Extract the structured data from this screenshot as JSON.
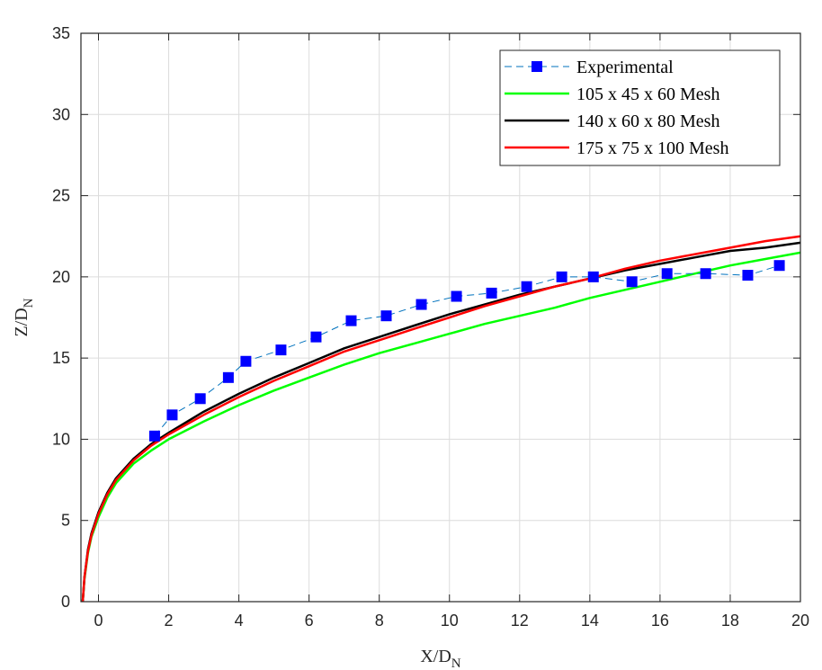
{
  "chart_data": {
    "type": "line",
    "xlabel": "X/D",
    "xlabel_sub": "N",
    "ylabel": "Z/D",
    "ylabel_sub": "N",
    "xlim": [
      -0.5,
      20
    ],
    "ylim": [
      0,
      35
    ],
    "xticks": [
      0,
      2,
      4,
      6,
      8,
      10,
      12,
      14,
      16,
      18,
      20
    ],
    "yticks": [
      0,
      5,
      10,
      15,
      20,
      25,
      30,
      35
    ],
    "grid": true,
    "legend_position": "top-right",
    "series": [
      {
        "name": "Experimental",
        "color": "#0000ff",
        "line_color": "#0072bd",
        "line_style": "dashed",
        "marker": "square",
        "x": [
          1.6,
          2.1,
          2.9,
          3.7,
          4.2,
          5.2,
          6.2,
          7.2,
          8.2,
          9.2,
          10.2,
          11.2,
          12.2,
          13.2,
          14.1,
          15.2,
          16.2,
          17.3,
          18.5,
          19.4
        ],
        "y": [
          10.2,
          11.5,
          12.5,
          13.8,
          14.8,
          15.5,
          16.3,
          17.3,
          17.6,
          18.3,
          18.8,
          19.0,
          19.4,
          20.0,
          20.0,
          19.7,
          20.2,
          20.2,
          20.1,
          20.7
        ]
      },
      {
        "name": "105 x 45 x 60 Mesh",
        "color": "#00ff00",
        "x": [
          -0.45,
          -0.4,
          -0.3,
          -0.2,
          0,
          0.25,
          0.5,
          1,
          1.5,
          2,
          3,
          4,
          5,
          6,
          7,
          8,
          9,
          10,
          11,
          12,
          13,
          14,
          15,
          16,
          17,
          18,
          19,
          20
        ],
        "y": [
          0,
          1.4,
          3.0,
          4.0,
          5.2,
          6.4,
          7.3,
          8.5,
          9.3,
          10.0,
          11.1,
          12.1,
          13.0,
          13.8,
          14.6,
          15.3,
          15.9,
          16.5,
          17.1,
          17.6,
          18.1,
          18.7,
          19.2,
          19.7,
          20.2,
          20.7,
          21.1,
          21.5
        ]
      },
      {
        "name": "140 x 60 x 80 Mesh",
        "color": "#000000",
        "x": [
          -0.45,
          -0.4,
          -0.3,
          -0.2,
          0,
          0.25,
          0.5,
          1,
          1.5,
          2,
          3,
          4,
          5,
          6,
          7,
          8,
          9,
          10,
          11,
          12,
          13,
          14,
          15,
          16,
          17,
          18,
          19,
          20
        ],
        "y": [
          0,
          1.5,
          3.2,
          4.2,
          5.5,
          6.7,
          7.6,
          8.8,
          9.7,
          10.4,
          11.7,
          12.8,
          13.8,
          14.7,
          15.6,
          16.3,
          17.0,
          17.7,
          18.3,
          18.9,
          19.4,
          19.9,
          20.4,
          20.8,
          21.2,
          21.6,
          21.8,
          22.1
        ]
      },
      {
        "name": "175 x 75 x 100 Mesh",
        "color": "#ff0000",
        "x": [
          -0.45,
          -0.4,
          -0.3,
          -0.2,
          0,
          0.25,
          0.5,
          1,
          1.5,
          2,
          3,
          4,
          5,
          6,
          7,
          8,
          9,
          10,
          11,
          12,
          13,
          14,
          15,
          16,
          17,
          18,
          19,
          20
        ],
        "y": [
          0,
          1.5,
          3.1,
          4.1,
          5.4,
          6.6,
          7.5,
          8.7,
          9.6,
          10.3,
          11.5,
          12.6,
          13.6,
          14.5,
          15.4,
          16.1,
          16.8,
          17.5,
          18.2,
          18.8,
          19.4,
          19.9,
          20.5,
          21.0,
          21.4,
          21.8,
          22.2,
          22.5
        ]
      }
    ]
  }
}
